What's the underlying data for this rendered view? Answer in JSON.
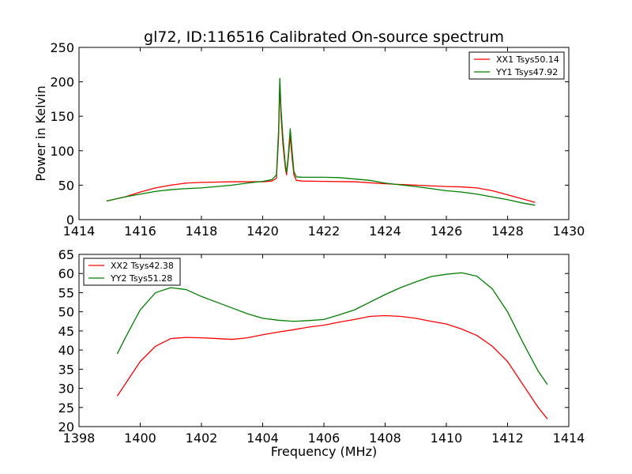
{
  "chart_data": [
    {
      "type": "line",
      "title": "gl72, ID:116516 Calibrated On-source spectrum",
      "xlabel": "",
      "ylabel": "Power in Kelvin",
      "xlim": [
        1414,
        1430
      ],
      "ylim": [
        0,
        250
      ],
      "xticks": [
        1414,
        1416,
        1418,
        1420,
        1422,
        1424,
        1426,
        1428,
        1430
      ],
      "yticks": [
        0,
        50,
        100,
        150,
        200,
        250
      ],
      "legend_position": "top-right",
      "series": [
        {
          "name": "XX1 Tsys50.14",
          "color": "#ff0000",
          "points": [
            [
              1414.9,
              27
            ],
            [
              1415.5,
              33
            ],
            [
              1416.0,
              40
            ],
            [
              1416.5,
              46
            ],
            [
              1417.0,
              50
            ],
            [
              1417.5,
              53
            ],
            [
              1418.0,
              54
            ],
            [
              1418.5,
              54.5
            ],
            [
              1419.0,
              55
            ],
            [
              1419.5,
              55
            ],
            [
              1420.0,
              55
            ],
            [
              1420.3,
              56
            ],
            [
              1420.45,
              60
            ],
            [
              1420.52,
              120
            ],
            [
              1420.56,
              200
            ],
            [
              1420.6,
              150
            ],
            [
              1420.66,
              110
            ],
            [
              1420.74,
              75
            ],
            [
              1420.78,
              65
            ],
            [
              1420.84,
              90
            ],
            [
              1420.9,
              122
            ],
            [
              1420.96,
              90
            ],
            [
              1421.02,
              65
            ],
            [
              1421.1,
              57
            ],
            [
              1421.3,
              56
            ],
            [
              1422.0,
              55.5
            ],
            [
              1423.0,
              55
            ],
            [
              1424.0,
              52
            ],
            [
              1425.0,
              50
            ],
            [
              1426.0,
              48
            ],
            [
              1426.5,
              47.5
            ],
            [
              1427.0,
              46
            ],
            [
              1427.5,
              42
            ],
            [
              1428.0,
              36
            ],
            [
              1428.5,
              30
            ],
            [
              1428.9,
              25
            ]
          ]
        },
        {
          "name": "YY1 Tsys47.92",
          "color": "#008000",
          "points": [
            [
              1414.9,
              27
            ],
            [
              1415.5,
              33
            ],
            [
              1416.0,
              37
            ],
            [
              1416.5,
              41
            ],
            [
              1417.0,
              43.5
            ],
            [
              1417.5,
              45
            ],
            [
              1418.0,
              46
            ],
            [
              1418.5,
              48
            ],
            [
              1419.0,
              50
            ],
            [
              1419.5,
              53
            ],
            [
              1420.0,
              55.5
            ],
            [
              1420.3,
              58
            ],
            [
              1420.45,
              65
            ],
            [
              1420.52,
              130
            ],
            [
              1420.56,
              205
            ],
            [
              1420.6,
              160
            ],
            [
              1420.66,
              120
            ],
            [
              1420.74,
              80
            ],
            [
              1420.78,
              68
            ],
            [
              1420.84,
              95
            ],
            [
              1420.9,
              132
            ],
            [
              1420.96,
              100
            ],
            [
              1421.02,
              70
            ],
            [
              1421.1,
              62
            ],
            [
              1421.3,
              61.5
            ],
            [
              1422.0,
              61.5
            ],
            [
              1422.5,
              61
            ],
            [
              1423.0,
              59
            ],
            [
              1423.5,
              57
            ],
            [
              1424.0,
              53
            ],
            [
              1424.5,
              50.5
            ],
            [
              1425.0,
              48
            ],
            [
              1425.5,
              45
            ],
            [
              1426.0,
              42
            ],
            [
              1426.5,
              40
            ],
            [
              1427.0,
              37
            ],
            [
              1427.5,
              33
            ],
            [
              1428.0,
              29
            ],
            [
              1428.5,
              24
            ],
            [
              1428.9,
              21
            ]
          ]
        }
      ]
    },
    {
      "type": "line",
      "title": "",
      "xlabel": "Frequency (MHz)",
      "ylabel": "",
      "xlim": [
        1398,
        1414
      ],
      "ylim": [
        20,
        65
      ],
      "xticks": [
        1398,
        1400,
        1402,
        1404,
        1406,
        1408,
        1410,
        1412,
        1414
      ],
      "yticks": [
        20,
        25,
        30,
        35,
        40,
        45,
        50,
        55,
        60,
        65
      ],
      "legend_position": "top-left",
      "series": [
        {
          "name": "XX2 Tsys42.38",
          "color": "#ff0000",
          "points": [
            [
              1399.25,
              28
            ],
            [
              1399.5,
              31
            ],
            [
              1400.0,
              37
            ],
            [
              1400.5,
              41
            ],
            [
              1401.0,
              43
            ],
            [
              1401.5,
              43.3
            ],
            [
              1402.0,
              43.2
            ],
            [
              1402.5,
              43
            ],
            [
              1403.0,
              42.8
            ],
            [
              1403.5,
              43.2
            ],
            [
              1404.0,
              44
            ],
            [
              1404.5,
              44.7
            ],
            [
              1405.0,
              45.3
            ],
            [
              1405.5,
              46
            ],
            [
              1406.0,
              46.5
            ],
            [
              1406.5,
              47.3
            ],
            [
              1407.0,
              48
            ],
            [
              1407.5,
              48.8
            ],
            [
              1408.0,
              49
            ],
            [
              1408.5,
              48.8
            ],
            [
              1409.0,
              48.3
            ],
            [
              1409.5,
              47.5
            ],
            [
              1410.0,
              46.8
            ],
            [
              1410.5,
              45.5
            ],
            [
              1411.0,
              43.8
            ],
            [
              1411.5,
              41
            ],
            [
              1412.0,
              37
            ],
            [
              1412.5,
              31
            ],
            [
              1413.0,
              25
            ],
            [
              1413.3,
              22
            ]
          ]
        },
        {
          "name": "YY2 Tsys51.28",
          "color": "#008000",
          "points": [
            [
              1399.25,
              39
            ],
            [
              1399.5,
              43
            ],
            [
              1400.0,
              50.5
            ],
            [
              1400.5,
              55
            ],
            [
              1401.0,
              56.3
            ],
            [
              1401.5,
              55.8
            ],
            [
              1402.0,
              54
            ],
            [
              1402.5,
              52.5
            ],
            [
              1403.0,
              51
            ],
            [
              1403.5,
              49.5
            ],
            [
              1404.0,
              48.3
            ],
            [
              1404.5,
              47.8
            ],
            [
              1405.0,
              47.5
            ],
            [
              1405.5,
              47.7
            ],
            [
              1406.0,
              48
            ],
            [
              1406.5,
              49.2
            ],
            [
              1407.0,
              50.5
            ],
            [
              1407.5,
              52.5
            ],
            [
              1408.0,
              54.5
            ],
            [
              1408.5,
              56.3
            ],
            [
              1409.0,
              57.8
            ],
            [
              1409.5,
              59.2
            ],
            [
              1410.0,
              59.8
            ],
            [
              1410.5,
              60.2
            ],
            [
              1411.0,
              59.3
            ],
            [
              1411.5,
              56
            ],
            [
              1412.0,
              50
            ],
            [
              1412.5,
              42
            ],
            [
              1413.0,
              34.5
            ],
            [
              1413.3,
              31
            ]
          ]
        }
      ]
    }
  ]
}
